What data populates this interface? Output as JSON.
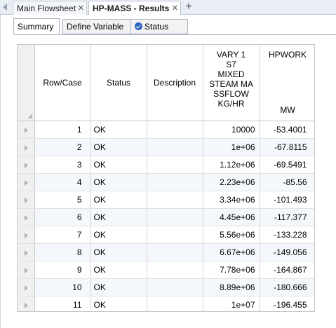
{
  "doc_tabs": [
    {
      "label": "Main Flowsheet",
      "close": "✕"
    },
    {
      "label": "HP-MASS - Results",
      "close": "✕"
    }
  ],
  "add_tab": "+",
  "sub_tabs": [
    "Summary",
    "Define Variable",
    "Status"
  ],
  "columns": {
    "row_case": "Row/Case",
    "status": "Status",
    "description": "Description",
    "flow": [
      "VARY   1",
      "S7",
      "MIXED",
      "STEAM MA",
      "SSFLOW",
      "KG/HR"
    ],
    "work_name": "HPWORK",
    "work_unit": "MW"
  },
  "rows": [
    {
      "case": "1",
      "status": "OK",
      "description": "",
      "flow": "10000",
      "work": "-53.4001"
    },
    {
      "case": "2",
      "status": "OK",
      "description": "",
      "flow": "1e+06",
      "work": "-67.8115"
    },
    {
      "case": "3",
      "status": "OK",
      "description": "",
      "flow": "1.12e+06",
      "work": "-69.5491"
    },
    {
      "case": "4",
      "status": "OK",
      "description": "",
      "flow": "2.23e+06",
      "work": "-85.56"
    },
    {
      "case": "5",
      "status": "OK",
      "description": "",
      "flow": "3.34e+06",
      "work": "-101.493"
    },
    {
      "case": "6",
      "status": "OK",
      "description": "",
      "flow": "4.45e+06",
      "work": "-117.377"
    },
    {
      "case": "7",
      "status": "OK",
      "description": "",
      "flow": "5.56e+06",
      "work": "-133.228"
    },
    {
      "case": "8",
      "status": "OK",
      "description": "",
      "flow": "6.67e+06",
      "work": "-149.056"
    },
    {
      "case": "9",
      "status": "OK",
      "description": "",
      "flow": "7.78e+06",
      "work": "-164.867"
    },
    {
      "case": "10",
      "status": "OK",
      "description": "",
      "flow": "8.89e+06",
      "work": "-180.666"
    },
    {
      "case": "11",
      "status": "OK",
      "description": "",
      "flow": "1e+07",
      "work": "-196.455"
    }
  ]
}
